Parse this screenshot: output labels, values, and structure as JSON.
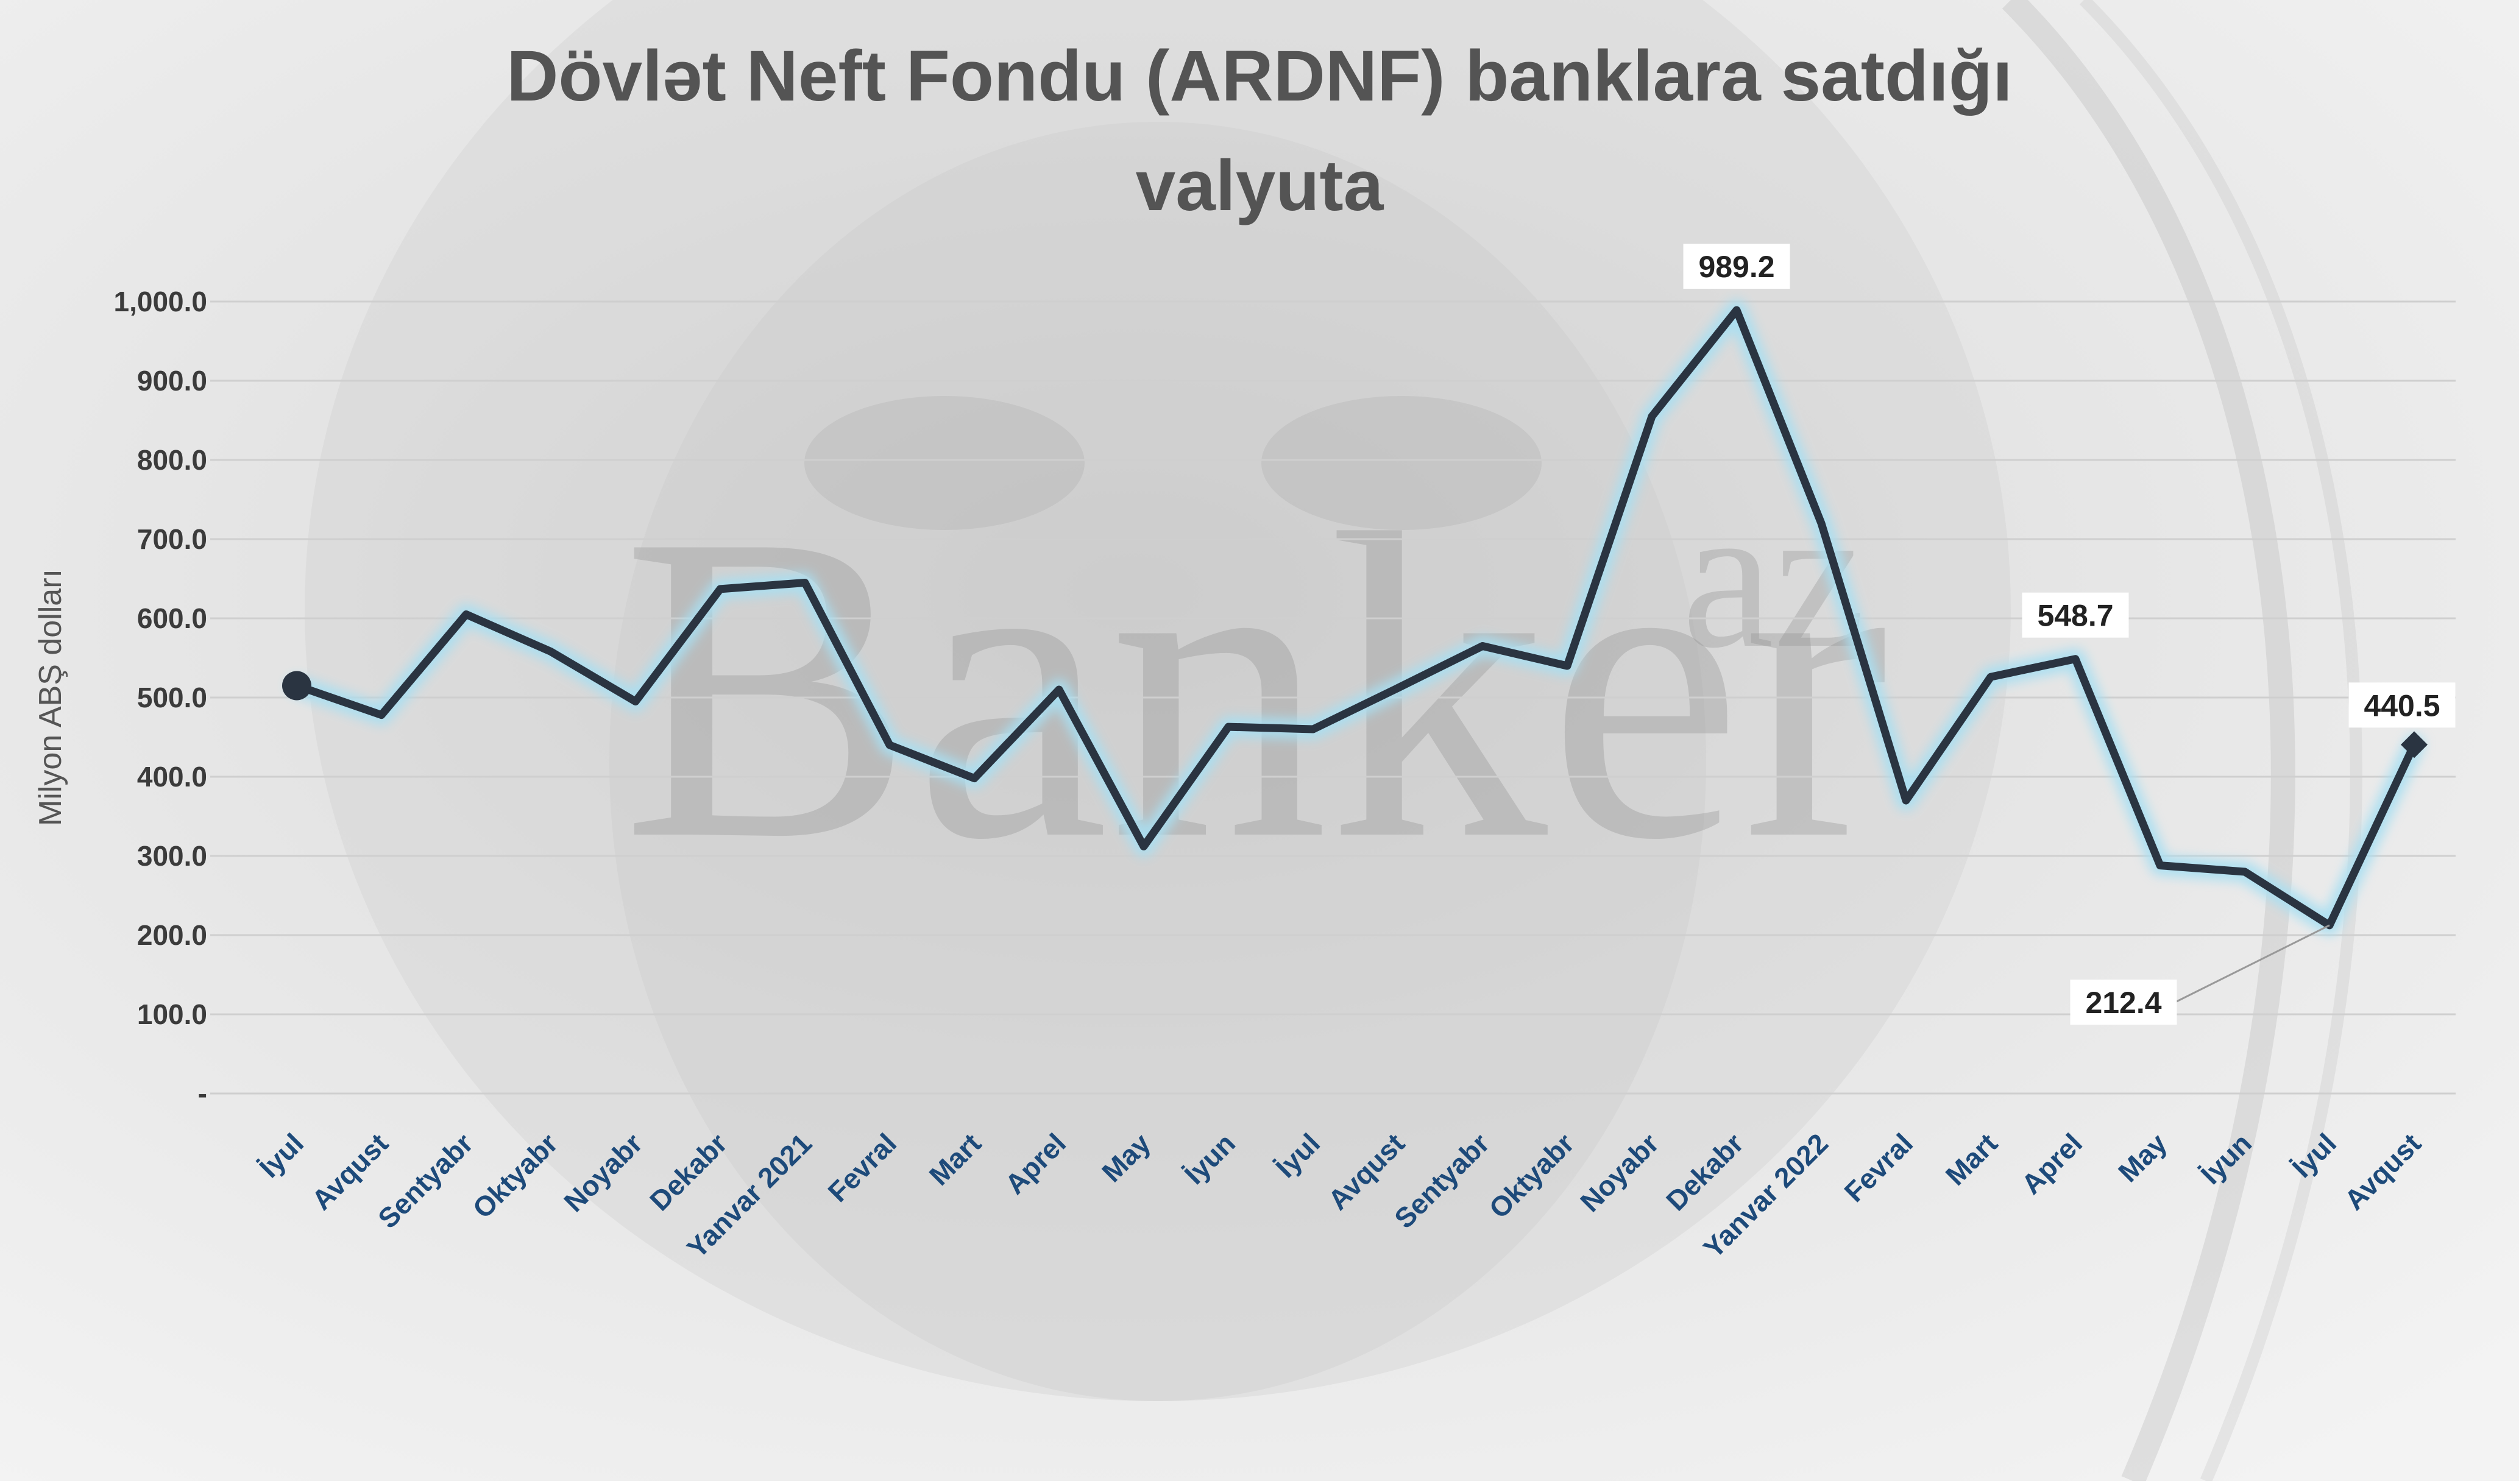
{
  "chart_data": {
    "type": "line",
    "title_lines": [
      "Dövlət Neft Fondu (ARDNF) banklara satdığı",
      "valyuta"
    ],
    "ylabel": "Milyon ABŞ dolları",
    "xlabel": "",
    "ylim": [
      0,
      1000
    ],
    "yticks": [
      {
        "value": 0,
        "label": "-"
      },
      {
        "value": 100,
        "label": "100.0"
      },
      {
        "value": 200,
        "label": "200.0"
      },
      {
        "value": 300,
        "label": "300.0"
      },
      {
        "value": 400,
        "label": "400.0"
      },
      {
        "value": 500,
        "label": "500.0"
      },
      {
        "value": 600,
        "label": "600.0"
      },
      {
        "value": 700,
        "label": "700.0"
      },
      {
        "value": 800,
        "label": "800.0"
      },
      {
        "value": 900,
        "label": "900.0"
      },
      {
        "value": 1000,
        "label": "1,000.0"
      }
    ],
    "grid": true,
    "categories": [
      "İyul",
      "Avqust",
      "Sentyabr",
      "Oktyabr",
      "Noyabr",
      "Dekabr",
      "Yanvar 2021",
      "Fevral",
      "Mart",
      "Aprel",
      "May",
      "İyun",
      "İyul",
      "Avqust",
      "Sentyabr",
      "Oktyabr",
      "Noyabr",
      "Dekabr",
      "Yanvar 2022",
      "Fevral",
      "Mart",
      "Aprel",
      "May",
      "İyun",
      "İyul",
      "Avqust"
    ],
    "series": [
      {
        "values": [
          515,
          478,
          605,
          558,
          495,
          637,
          645,
          440,
          398,
          510,
          312,
          463,
          460,
          512,
          565,
          540,
          855,
          989.2,
          720,
          370,
          526,
          548.7,
          288,
          280,
          212.4,
          440.5
        ],
        "color": "#2a3441",
        "glow_color": "#a8dff2"
      }
    ],
    "data_labels": [
      {
        "index": 17,
        "text": "989.2"
      },
      {
        "index": 21,
        "text": "548.7"
      },
      {
        "index": 24,
        "text": "212.4"
      },
      {
        "index": 25,
        "text": "440.5"
      }
    ],
    "watermark": "Banker",
    "watermark_suffix": "az"
  }
}
